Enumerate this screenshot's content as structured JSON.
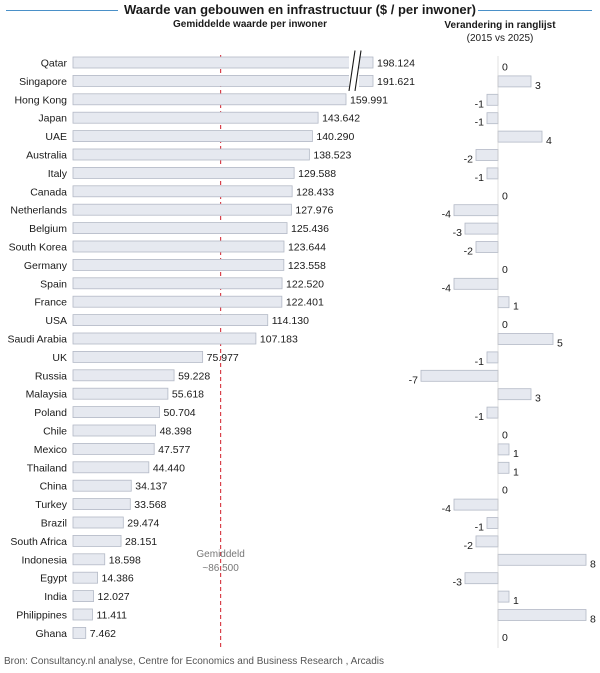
{
  "title": "Waarde van gebouwen en infrastructuur  ($ / per inwoner)",
  "source": "Bron: Consultancy.nl analyse, Centre for Economics and Business Research , Arcadis",
  "colors": {
    "bar_fill": "#e6e9f0",
    "bar_stroke": "#b3b9c6",
    "average_line": "#d8424c",
    "rule": "#4a90c8"
  },
  "chart_data": [
    {
      "type": "bar",
      "orientation": "horizontal",
      "subtitle": "Gemiddelde waarde per inwoner",
      "axis_break": true,
      "broken_categories": [
        "Qatar",
        "Singapore"
      ],
      "average": {
        "label": "Gemiddeld",
        "value_label": "~86.500",
        "value": 86500
      },
      "categories": [
        "Qatar",
        "Singapore",
        "Hong Kong",
        "Japan",
        "UAE",
        "Australia",
        "Italy",
        "Canada",
        "Netherlands",
        "Belgium",
        "South Korea",
        "Germany",
        "Spain",
        "France",
        "USA",
        "Saudi Arabia",
        "UK",
        "Russia",
        "Malaysia",
        "Poland",
        "Chile",
        "Mexico",
        "Thailand",
        "China",
        "Turkey",
        "Brazil",
        "South Africa",
        "Indonesia",
        "Egypt",
        "India",
        "Philippines",
        "Ghana"
      ],
      "values": [
        198124,
        191621,
        159991,
        143642,
        140290,
        138523,
        129588,
        128433,
        127976,
        125436,
        123644,
        123558,
        122520,
        122401,
        114130,
        107183,
        75977,
        59228,
        55618,
        50704,
        48398,
        47577,
        44440,
        34137,
        33568,
        29474,
        28151,
        18598,
        14386,
        12027,
        11411,
        7462
      ],
      "value_labels": [
        "198.124",
        "191.621",
        "159.991",
        "143.642",
        "140.290",
        "138.523",
        "129.588",
        "128.433",
        "127.976",
        "125.436",
        "123.644",
        "123.558",
        "122.520",
        "122.401",
        "114.130",
        "107.183",
        "75.977",
        "59.228",
        "55.618",
        "50.704",
        "48.398",
        "47.577",
        "44.440",
        "34.137",
        "33.568",
        "29.474",
        "28.151",
        "18.598",
        "14.386",
        "12.027",
        "11.411",
        "7.462"
      ]
    },
    {
      "type": "bar",
      "orientation": "horizontal",
      "subtitle": "Verandering in ranglijst",
      "period": "(2015 vs 2025)",
      "categories": [
        "Qatar",
        "Singapore",
        "Hong Kong",
        "Japan",
        "UAE",
        "Australia",
        "Italy",
        "Canada",
        "Netherlands",
        "Belgium",
        "South Korea",
        "Germany",
        "Spain",
        "France",
        "USA",
        "Saudi Arabia",
        "UK",
        "Russia",
        "Malaysia",
        "Poland",
        "Chile",
        "Mexico",
        "Thailand",
        "China",
        "Turkey",
        "Brazil",
        "South Africa",
        "Indonesia",
        "Egypt",
        "India",
        "Philippines",
        "Ghana"
      ],
      "values": [
        0,
        3,
        -1,
        -1,
        4,
        -2,
        -1,
        0,
        -4,
        -3,
        -2,
        0,
        -4,
        1,
        0,
        5,
        -1,
        -7,
        3,
        -1,
        0,
        1,
        1,
        0,
        -4,
        -1,
        -2,
        8,
        -3,
        1,
        8,
        0
      ]
    }
  ]
}
